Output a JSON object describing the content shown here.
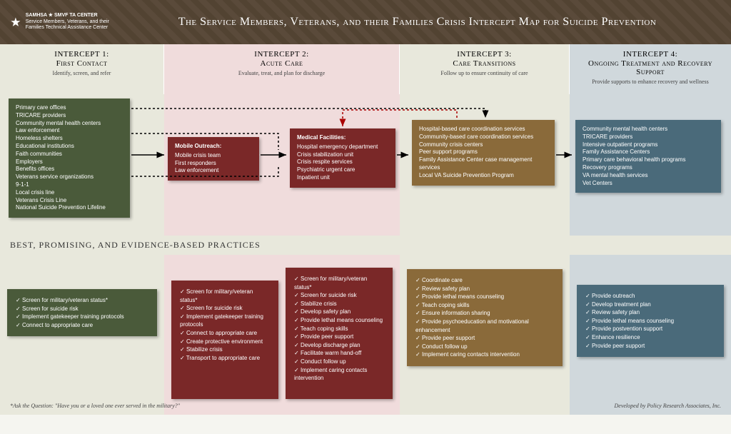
{
  "header": {
    "logo_top": "SAMHSA ★ SMVF TA CENTER",
    "logo_sub": "Service Members, Veterans, and their Families Technical Assistance Center",
    "title": "The Service Members, Veterans, and their Families Crisis Intercept Map for Suicide Prevention"
  },
  "intercepts": [
    {
      "num": "INTERCEPT 1:",
      "name": "First Contact",
      "sub": "Identify, screen, and refer"
    },
    {
      "num": "INTERCEPT 2:",
      "name": "Acute Care",
      "sub": "Evaluate, treat, and plan for discharge"
    },
    {
      "num": "INTERCEPT 3:",
      "name": "Care Transitions",
      "sub": "Follow up to ensure continuity of care"
    },
    {
      "num": "INTERCEPT 4:",
      "name": "Ongoing Treatment and Recovery Support",
      "sub": "Provide supports to enhance recovery and wellness"
    }
  ],
  "boxes": {
    "first_contact": {
      "items": [
        "Primary care offices",
        "TRICARE providers",
        "Community mental health centers",
        "Law enforcement",
        "Homeless shelters",
        "Educational institutions",
        "Faith communities",
        "Employers",
        "Benefits offices",
        "Veterans service organizations",
        "9-1-1",
        "Local crisis line",
        "Veterans Crisis Line",
        "National Suicide Prevention Lifeline"
      ]
    },
    "mobile": {
      "title": "Mobile Outreach:",
      "items": [
        "Mobile crisis team",
        "First responders",
        "Law enforcement"
      ]
    },
    "medical": {
      "title": "Medical Facilities:",
      "items": [
        "Hospital emergency department",
        "Crisis stabilization unit",
        "Crisis respite services",
        "Psychiatric urgent care",
        "Inpatient unit"
      ]
    },
    "transitions": {
      "items": [
        "Hospital-based care coordination services",
        "Community-based care coordination services",
        "Community crisis centers",
        "Peer support programs",
        "Family Assistance Center case management services",
        "Local VA Suicide Prevention Program"
      ]
    },
    "ongoing": {
      "items": [
        "Community mental health centers",
        "TRICARE providers",
        "Intensive outpatient programs",
        "Family Assistance Centers",
        "Primary care behavioral health programs",
        "Recovery programs",
        "VA mental health services",
        "Vet Centers"
      ]
    }
  },
  "section_title": "BEST, PROMISING, AND EVIDENCE-BASED PRACTICES",
  "practices": {
    "p1": [
      "Screen for military/veteran status*",
      "Screen for suicide risk",
      "Implement gatekeeper training protocols",
      "Connect to appropriate care"
    ],
    "p2": [
      "Screen for military/veteran status*",
      "Screen for suicide risk",
      "Implement gatekeeper training protocols",
      "Connect to appropriate care",
      "Create protective environment",
      "Stabilize crisis",
      "Transport to appropriate care"
    ],
    "p3": [
      "Screen for military/veteran status*",
      "Screen for suicide risk",
      "Stabilize crisis",
      "Develop safety plan",
      "Provide lethal means counseling",
      "Teach coping skills",
      "Provide peer support",
      "Develop discharge plan",
      "Facilitate warm hand-off",
      "Conduct follow up",
      "Implement caring contacts intervention"
    ],
    "p4": [
      "Coordinate care",
      "Review safety plan",
      "Provide lethal means counseling",
      "Teach coping skills",
      "Ensure information sharing",
      "Provide psychoeducation and motivational enhancement",
      "Provide peer support",
      "Conduct follow up",
      "Implement caring contacts intervention"
    ],
    "p5": [
      "Provide outreach",
      "Develop treatment plan",
      "Review safety plan",
      "Provide lethal means counseling",
      "Provide postvention support",
      "Enhance resilience",
      "Provide peer support"
    ]
  },
  "footer": {
    "left": "*Ask the Question: \"Have you or a loved one ever served in the military?\"",
    "right": "Developed by Policy Research Associates, Inc."
  },
  "colors": {
    "green": "#4a5a3a",
    "red": "#7a2828",
    "brown": "#8a6a3a",
    "blue": "#4a6a7a"
  }
}
